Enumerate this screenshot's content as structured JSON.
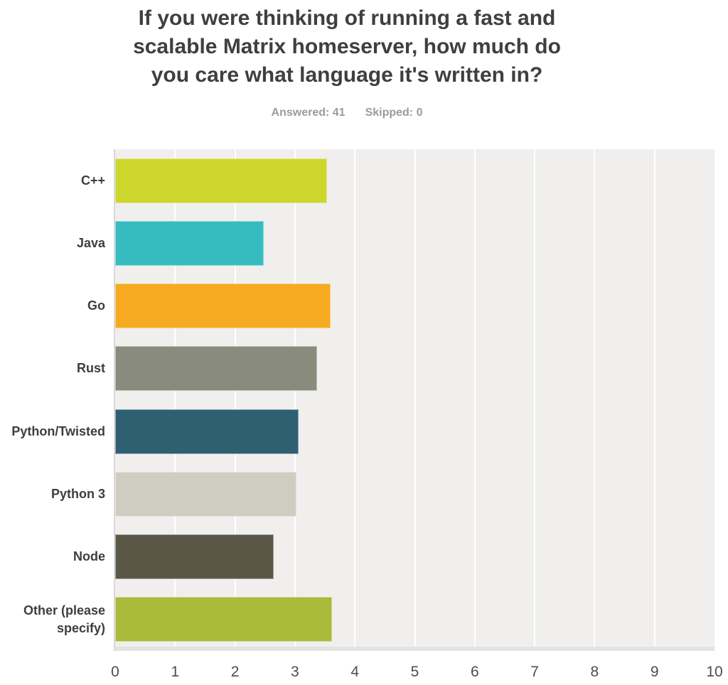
{
  "header": {
    "title_lines": [
      "If you were thinking of running a fast and",
      "scalable Matrix homeserver, how much do",
      "you care what language it's written in?"
    ],
    "answered": "Answered: 41",
    "skipped": "Skipped: 0"
  },
  "chart_data": {
    "type": "bar",
    "orientation": "horizontal",
    "title": "If you were thinking of running a fast and scalable Matrix homeserver, how much do you care what language it's written in?",
    "subtitle": "Answered: 41  Skipped: 0",
    "categories": [
      "C++",
      "Java",
      "Go",
      "Rust",
      "Python/Twisted",
      "Python 3",
      "Node",
      "Other (please specify)"
    ],
    "values": [
      3.54,
      2.48,
      3.6,
      3.37,
      3.06,
      3.02,
      2.65,
      3.62
    ],
    "bar_colors": [
      "#ccd62d",
      "#36bcbe",
      "#f5aa1f",
      "#898c7c",
      "#2f6072",
      "#cfcdc0",
      "#5a5746",
      "#a8bb3a"
    ],
    "xlabel": "",
    "ylabel": "",
    "xlim": [
      0,
      10
    ],
    "x_ticks": [
      "0",
      "1",
      "2",
      "3",
      "4",
      "5",
      "6",
      "7",
      "8",
      "9",
      "10"
    ],
    "grid": true,
    "legend": false,
    "plot_background": "#f0efee",
    "gridline_color": "#ffffff"
  }
}
